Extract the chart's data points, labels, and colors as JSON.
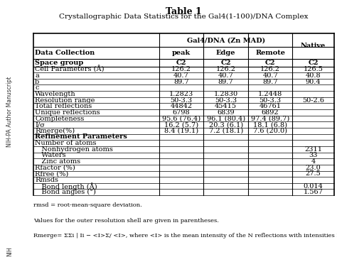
{
  "title": "Table 1",
  "subtitle": "Crystallographic Data Statistics for the Gal4(1-100)/DNA Complex",
  "col_header1": "Gal4/DNA (Zn MAD)",
  "col_header2": "Native",
  "sub_headers": [
    "Data Collection",
    "peak",
    "Edge",
    "Remote",
    ""
  ],
  "sub_headers2": [
    "Space group",
    "C2",
    "C2",
    "C2",
    "C2"
  ],
  "rows": [
    [
      "Cell Parameters (Å)",
      "126.2",
      "126.2",
      "126.2",
      "126.5"
    ],
    [
      "a",
      "40.7",
      "40.7",
      "40.7",
      "40.8"
    ],
    [
      "b",
      "89.7",
      "89.7",
      "89.7",
      "90.4"
    ],
    [
      "c",
      "",
      "",
      "",
      ""
    ],
    [
      "Wavelength",
      "1.2823",
      "1.2830",
      "1.2448",
      ""
    ],
    [
      "Resolution range",
      "50-3.3",
      "50-3.3",
      "50-3.3",
      "50-2.6"
    ],
    [
      "Total reflections",
      "44842",
      "45415",
      "46761",
      ""
    ],
    [
      "Unique reflections",
      "6798",
      "6839",
      "6892",
      ""
    ],
    [
      "Completeness",
      "95.6 (76.4)",
      "96.1 (80.4)",
      "97.4 (89.7)",
      ""
    ],
    [
      "I/σ",
      "16.2 (5.7)",
      "20.3 (6.1)",
      "18.1 (6.8)",
      ""
    ],
    [
      "Rmerge(%)",
      "8.4 (19.1)",
      "7.2 (18.1)",
      "7.6 (20.0)",
      ""
    ],
    [
      "Refinement Parameters",
      "",
      "",
      "",
      ""
    ],
    [
      "Number of atoms",
      "",
      "",
      "",
      ""
    ],
    [
      "   Nonhydrogen atoms",
      "",
      "",
      "",
      "2311"
    ],
    [
      "   Waters",
      "",
      "",
      "",
      "33"
    ],
    [
      "   Zinc atoms",
      "",
      "",
      "",
      "4"
    ],
    [
      "Rfactor (%)",
      "",
      "",
      "",
      "23.0"
    ],
    [
      "Rfree (%)",
      "",
      "",
      "",
      "27.5"
    ],
    [
      "Rmsds",
      "",
      "",
      "",
      ""
    ],
    [
      "   Bond length (Å)",
      "",
      "",
      "",
      "0.014"
    ],
    [
      "   Bond angles (°)",
      "",
      "",
      "",
      "1.567"
    ]
  ],
  "footnotes": [
    "rmsd = root-mean-square deviation.",
    "Values for the outer resolution shell are given in parentheses.",
    "Rmerge= ΣΣi | Ii − <I>Σ/ <I>, where <I> is the mean intensity of the N reflections with intensities Ii and a"
  ],
  "bold_labels": [
    "Refinement Parameters"
  ],
  "sidebar_color": "#a8c4e0",
  "bg_color": "#ffffff",
  "table_font_size": 7.0,
  "title_font_size": 9.0
}
